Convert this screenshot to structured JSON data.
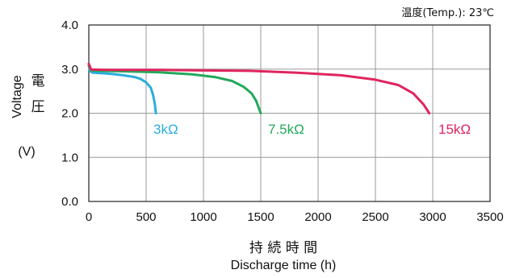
{
  "note": "温度(Temp.): 23℃",
  "chart_data": {
    "type": "line",
    "title": "",
    "ylabel_en": "Voltage",
    "ylabel_jp_1": "電",
    "ylabel_jp_2": "圧",
    "ylabel_unit": "(V)",
    "xlabel_jp": "持 続 時 間",
    "xlabel": "Discharge time (h)",
    "xlim": [
      0,
      3500
    ],
    "ylim": [
      0.0,
      4.0
    ],
    "xticks": [
      "0",
      "500",
      "1000",
      "1500",
      "2000",
      "2500",
      "3000",
      "3500"
    ],
    "xtick_values": [
      0,
      500,
      1000,
      1500,
      2000,
      2500,
      3000,
      3500
    ],
    "yticks": [
      "4.0",
      "3.0",
      "2.0",
      "1.0",
      "0.0"
    ],
    "ytick_values": [
      4,
      3,
      2,
      1,
      0
    ],
    "grid": true,
    "series": [
      {
        "name": "3kΩ",
        "color": "#2aaed8",
        "points": [
          [
            0,
            3.08
          ],
          [
            10,
            2.96
          ],
          [
            30,
            2.92
          ],
          [
            100,
            2.91
          ],
          [
            200,
            2.89
          ],
          [
            300,
            2.86
          ],
          [
            400,
            2.82
          ],
          [
            450,
            2.78
          ],
          [
            500,
            2.7
          ],
          [
            540,
            2.58
          ],
          [
            560,
            2.42
          ],
          [
            575,
            2.22
          ],
          [
            585,
            2.0
          ]
        ]
      },
      {
        "name": "7.5kΩ",
        "color": "#22a95a",
        "points": [
          [
            0,
            3.08
          ],
          [
            20,
            2.97
          ],
          [
            100,
            2.96
          ],
          [
            300,
            2.95
          ],
          [
            600,
            2.93
          ],
          [
            900,
            2.88
          ],
          [
            1100,
            2.82
          ],
          [
            1250,
            2.73
          ],
          [
            1350,
            2.6
          ],
          [
            1420,
            2.45
          ],
          [
            1460,
            2.28
          ],
          [
            1485,
            2.1
          ],
          [
            1500,
            2.0
          ]
        ]
      },
      {
        "name": "15kΩ",
        "color": "#e0245e",
        "points": [
          [
            0,
            3.12
          ],
          [
            20,
            2.99
          ],
          [
            200,
            2.98
          ],
          [
            600,
            2.98
          ],
          [
            1000,
            2.97
          ],
          [
            1400,
            2.96
          ],
          [
            1800,
            2.92
          ],
          [
            2200,
            2.86
          ],
          [
            2500,
            2.76
          ],
          [
            2700,
            2.64
          ],
          [
            2830,
            2.45
          ],
          [
            2920,
            2.2
          ],
          [
            2970,
            2.0
          ]
        ]
      }
    ]
  }
}
